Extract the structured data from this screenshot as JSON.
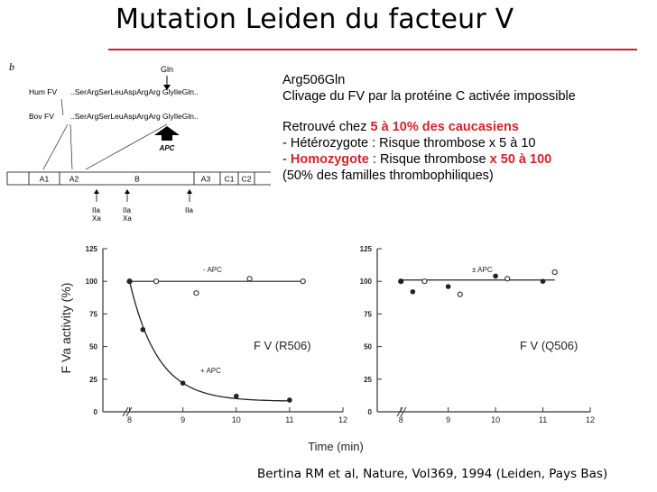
{
  "title": "Mutation Leiden du facteur V",
  "diagram": {
    "panel_letter": "b",
    "mutation_label": "Gln",
    "hum_label": "Hum FV",
    "hum_seq": "..SerArgSerLeuAspArgArg GlyIleGln..",
    "bov_label": "Bov FV",
    "bov_seq": "..SerArgSerLeuAspArgArg GlyIleGln..",
    "apc_label": "APC",
    "domains": [
      "A1",
      "A2",
      "B",
      "A3",
      "C1",
      "C2"
    ],
    "cleavage_labels": [
      [
        "IIa",
        "Xa"
      ],
      [
        "IIa",
        "Xa"
      ],
      [
        "IIa"
      ]
    ]
  },
  "info": {
    "line1": "Arg506Gln",
    "line2": "Clivage du FV par la protéine C activée impossible",
    "line3_prefix": "Retrouvé chez ",
    "line3_highlight": "5 à 10% des caucasiens",
    "line4": "- Hétérozygote : Risque thrombose  x 5 à 10",
    "line5_prefix": "- ",
    "line5_highlight": "Homozygote",
    "line5_middle": " : Risque thrombose ",
    "line5_highlight2": "x 50 à 100",
    "line6": "(50% des familles thrombophiliques)"
  },
  "chart_data": [
    {
      "type": "scatter",
      "title": "F V (R506)",
      "ylabel": "F Va activity (%)",
      "xlabel": "Time (min)",
      "xlim": [
        7.5,
        12
      ],
      "ylim": [
        0,
        125
      ],
      "xticks": [
        8,
        9,
        10,
        11,
        12
      ],
      "yticks": [
        0,
        25,
        50,
        75,
        100,
        125
      ],
      "axis_break": true,
      "series": [
        {
          "name": "- APC",
          "marker": "open",
          "x": [
            8,
            8.5,
            9.25,
            10.25,
            11.25
          ],
          "y": [
            100,
            100,
            91,
            102,
            100
          ],
          "fit": "flat",
          "fit_y": 100
        },
        {
          "name": "+ APC",
          "marker": "filled",
          "x": [
            8,
            8.25,
            9,
            10,
            11
          ],
          "y": [
            100,
            63,
            22,
            12,
            9
          ],
          "fit": "decay"
        }
      ]
    },
    {
      "type": "scatter",
      "title": "F V (Q506)",
      "ylabel": "",
      "xlabel": "",
      "xlim": [
        7.5,
        12
      ],
      "ylim": [
        0,
        125
      ],
      "xticks": [
        8,
        9,
        10,
        11,
        12
      ],
      "yticks": [
        0,
        25,
        50,
        75,
        100,
        125
      ],
      "axis_break": true,
      "annotation": "± APC",
      "series": [
        {
          "name": "- APC",
          "marker": "open",
          "x": [
            8,
            8.5,
            9.25,
            10.25,
            11.25
          ],
          "y": [
            100,
            100,
            90,
            102,
            107
          ]
        },
        {
          "name": "+ APC",
          "marker": "filled",
          "x": [
            8,
            8.25,
            9,
            10,
            11
          ],
          "y": [
            100,
            92,
            96,
            104,
            100
          ]
        }
      ],
      "fit": "flat",
      "fit_y": 101
    }
  ],
  "citation": "Bertina RM et al, Nature, Vol369, 1994  (Leiden, Pays Bas)"
}
